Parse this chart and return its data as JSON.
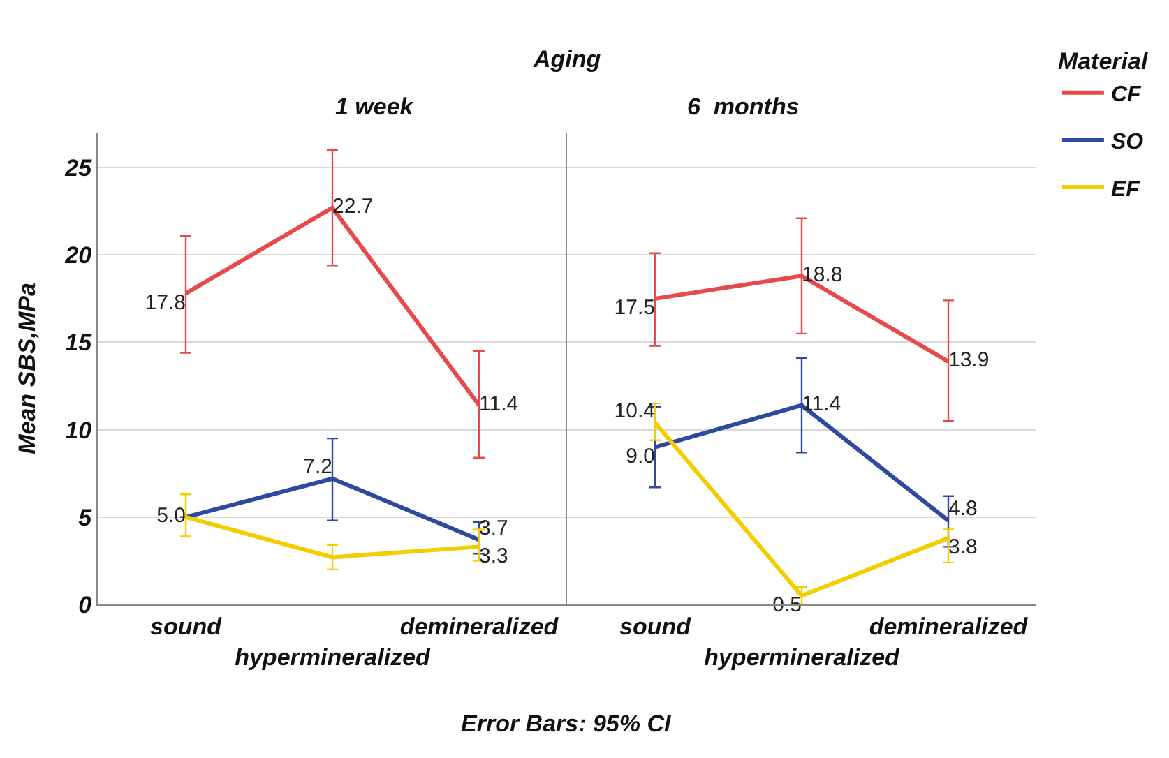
{
  "chart_data": [
    {
      "type": "line",
      "title": "1 week",
      "ylabel": "Mean SBS,MPa",
      "categories": [
        "sound",
        "hypermineralized",
        "demineralized"
      ],
      "ylim": [
        0,
        27
      ],
      "yticks": [
        0,
        5,
        10,
        15,
        20,
        25
      ],
      "grid": "y",
      "legend": "right",
      "legend_title": "Material",
      "marker": "none",
      "annotations": [
        "Aging",
        "Error Bars: 95% CI"
      ],
      "series": [
        {
          "name": "CF",
          "color": "#e8494a",
          "values": [
            17.8,
            22.7,
            11.4
          ],
          "value_labels": [
            "17.8",
            "22.7",
            "11.4"
          ],
          "errors": [
            [
              14.4,
              21.1
            ],
            [
              19.4,
              26.0
            ],
            [
              8.4,
              14.5
            ]
          ]
        },
        {
          "name": "SO",
          "color": "#2e4aa0",
          "values": [
            5.0,
            7.2,
            3.7
          ],
          "value_labels": [
            "5.0",
            "7.2",
            "3.7"
          ],
          "errors": [
            null,
            [
              4.8,
              9.5
            ],
            [
              2.9,
              4.7
            ]
          ]
        },
        {
          "name": "EF",
          "color": "#f2cd00",
          "values": [
            5.0,
            2.7,
            3.3
          ],
          "value_labels": [
            null,
            null,
            "3.3"
          ],
          "errors": [
            [
              3.9,
              6.3
            ],
            [
              2.0,
              3.4
            ],
            [
              2.5,
              4.3
            ]
          ]
        }
      ]
    },
    {
      "type": "line",
      "title": "6  months",
      "categories": [
        "sound",
        "hypermineralized",
        "demineralized"
      ],
      "ylim": [
        0,
        27
      ],
      "yticks": [
        0,
        5,
        10,
        15,
        20,
        25
      ],
      "grid": "y",
      "marker": "none",
      "tick_labels": "x",
      "series": [
        {
          "color": "#e8494a",
          "values": [
            17.5,
            18.8,
            13.9
          ],
          "value_labels": [
            "17.5",
            "18.8",
            "13.9"
          ],
          "errors": [
            [
              14.8,
              20.1
            ],
            [
              15.5,
              22.1
            ],
            [
              10.5,
              17.4
            ]
          ]
        },
        {
          "color": "#2e4aa0",
          "values": [
            9.0,
            11.4,
            4.8
          ],
          "value_labels": [
            "9.0",
            "11.4",
            "4.8"
          ],
          "errors": [
            [
              6.7,
              11.3
            ],
            [
              8.7,
              14.1
            ],
            [
              3.3,
              6.2
            ]
          ]
        },
        {
          "color": "#f2cd00",
          "values": [
            10.4,
            0.5,
            3.8
          ],
          "value_labels": [
            "10.4",
            "0.5",
            "3.8"
          ],
          "errors": [
            [
              9.4,
              11.5
            ],
            [
              0.0,
              1.0
            ],
            [
              2.4,
              4.3
            ]
          ]
        }
      ]
    }
  ]
}
